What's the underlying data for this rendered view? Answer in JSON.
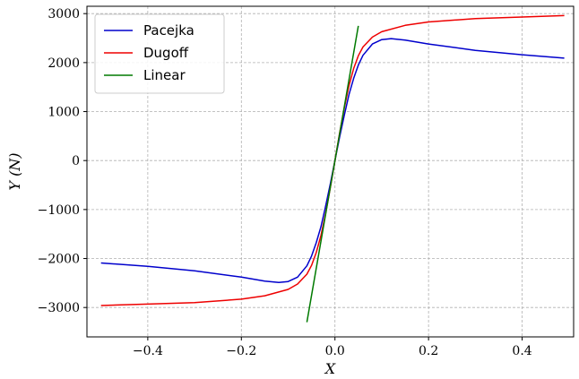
{
  "chart_data": {
    "type": "line",
    "title": "",
    "xlabel": "X",
    "ylabel": "Y (N)",
    "xlim": [
      -0.53,
      0.51
    ],
    "ylim": [
      -3600,
      3150
    ],
    "xticks": [
      -0.4,
      -0.2,
      0.0,
      0.2,
      0.4
    ],
    "xtick_labels": [
      "−0.4",
      "−0.2",
      "0.0",
      "0.2",
      "0.4"
    ],
    "yticks": [
      -3000,
      -2000,
      -1000,
      0,
      1000,
      2000,
      3000
    ],
    "ytick_labels": [
      "−3000",
      "−2000",
      "−1000",
      "0",
      "1000",
      "2000",
      "3000"
    ],
    "grid": true,
    "legend_position": "top-left",
    "series": [
      {
        "name": "Pacejka",
        "color": "#0000cc",
        "x": [
          -0.5,
          -0.4,
          -0.3,
          -0.2,
          -0.15,
          -0.12,
          -0.1,
          -0.08,
          -0.06,
          -0.05,
          -0.04,
          -0.03,
          -0.02,
          -0.01,
          0.0,
          0.01,
          0.02,
          0.03,
          0.04,
          0.05,
          0.06,
          0.08,
          0.1,
          0.12,
          0.15,
          0.2,
          0.3,
          0.4,
          0.49
        ],
        "y": [
          -2090,
          -2160,
          -2250,
          -2380,
          -2460,
          -2490,
          -2470,
          -2380,
          -2150,
          -1950,
          -1680,
          -1350,
          -930,
          -480,
          0,
          480,
          930,
          1350,
          1680,
          1950,
          2150,
          2380,
          2470,
          2490,
          2460,
          2380,
          2250,
          2160,
          2090
        ]
      },
      {
        "name": "Dugoff",
        "color": "#ee0000",
        "x": [
          -0.5,
          -0.4,
          -0.3,
          -0.2,
          -0.15,
          -0.1,
          -0.08,
          -0.06,
          -0.05,
          -0.04,
          -0.03,
          -0.02,
          -0.01,
          0.0,
          0.01,
          0.02,
          0.03,
          0.04,
          0.05,
          0.06,
          0.08,
          0.1,
          0.15,
          0.2,
          0.3,
          0.4,
          0.49
        ],
        "y": [
          -2960,
          -2930,
          -2900,
          -2830,
          -2760,
          -2630,
          -2520,
          -2320,
          -2140,
          -1880,
          -1530,
          -1080,
          -560,
          0,
          560,
          1080,
          1530,
          1880,
          2140,
          2320,
          2520,
          2630,
          2760,
          2830,
          2900,
          2930,
          2960
        ]
      },
      {
        "name": "Linear",
        "color": "#007a00",
        "x": [
          -0.06,
          0.05
        ],
        "y": [
          -3300,
          2750
        ]
      }
    ]
  }
}
